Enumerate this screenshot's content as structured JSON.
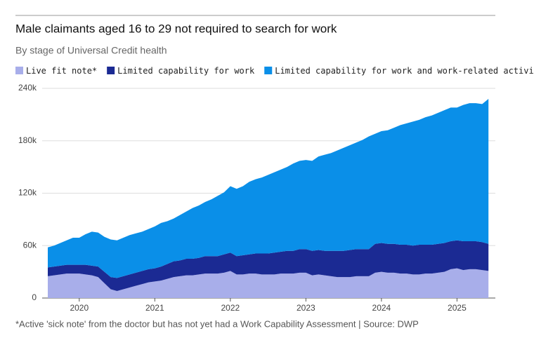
{
  "chart_data": {
    "type": "stacked_area",
    "title": "Male claimants aged 16 to 29 not required to search for work",
    "subtitle": "By stage of Universal Credit health",
    "footnote": "*Active 'sick note' from the doctor but has not yet had a Work Capability Assessment | Source: DWP",
    "categories": [
      null,
      null,
      null,
      null,
      null,
      "2020",
      null,
      null,
      null,
      null,
      null,
      null,
      null,
      null,
      null,
      null,
      null,
      "2021",
      null,
      null,
      null,
      null,
      null,
      null,
      null,
      null,
      null,
      null,
      null,
      "2022",
      null,
      null,
      null,
      null,
      null,
      null,
      null,
      null,
      null,
      null,
      null,
      "2023",
      null,
      null,
      null,
      null,
      null,
      null,
      null,
      null,
      null,
      null,
      null,
      "2024",
      null,
      null,
      null,
      null,
      null,
      null,
      null,
      null,
      null,
      null,
      null,
      "2025",
      null,
      null,
      null,
      null,
      null
    ],
    "series": [
      {
        "name": "Live fit note*",
        "color": "#a8aeea",
        "values": [
          25000,
          26000,
          27000,
          28000,
          28000,
          28000,
          27000,
          26000,
          24000,
          17000,
          10000,
          8000,
          10000,
          12000,
          14000,
          16000,
          18000,
          19000,
          20000,
          22000,
          24000,
          25000,
          26000,
          26000,
          27000,
          28000,
          28000,
          28000,
          29000,
          31000,
          27000,
          27000,
          28000,
          28000,
          27000,
          27000,
          27000,
          28000,
          28000,
          28000,
          29000,
          29000,
          26000,
          27000,
          26000,
          25000,
          24000,
          24000,
          24000,
          25000,
          25000,
          25000,
          29000,
          30000,
          29000,
          29000,
          28000,
          28000,
          27000,
          27000,
          28000,
          28000,
          29000,
          30000,
          33000,
          34000,
          32000,
          33000,
          33000,
          32000,
          31000
        ]
      },
      {
        "name": "Limited capability for work",
        "color": "#1b2a93",
        "values": [
          10000,
          10000,
          10000,
          10000,
          10000,
          10000,
          11000,
          11000,
          12000,
          13000,
          14000,
          15000,
          15000,
          15000,
          15000,
          15000,
          15000,
          15000,
          16000,
          17000,
          18000,
          18000,
          19000,
          19000,
          19000,
          20000,
          20000,
          20000,
          21000,
          21000,
          21000,
          22000,
          22000,
          23000,
          24000,
          24000,
          25000,
          25000,
          26000,
          26000,
          27000,
          27000,
          28000,
          28000,
          28000,
          29000,
          30000,
          30000,
          31000,
          31000,
          31000,
          31000,
          33000,
          33000,
          33000,
          33000,
          33000,
          33000,
          33000,
          34000,
          33000,
          33000,
          33000,
          33000,
          32000,
          32000,
          33000,
          32000,
          32000,
          32000,
          31000
        ]
      },
      {
        "name": "Limited capability for work and work-related activity",
        "color": "#0a8fe8",
        "values": [
          23000,
          24000,
          26000,
          28000,
          31000,
          31000,
          35000,
          39000,
          39000,
          40000,
          43000,
          43000,
          44000,
          45000,
          45000,
          45000,
          46000,
          48000,
          50000,
          49000,
          49000,
          52000,
          54000,
          58000,
          60000,
          62000,
          65000,
          69000,
          71000,
          76000,
          77000,
          79000,
          83000,
          85000,
          87000,
          90000,
          92000,
          94000,
          96000,
          100000,
          101000,
          102000,
          103000,
          107000,
          110000,
          112000,
          115000,
          118000,
          120000,
          122000,
          125000,
          129000,
          126000,
          128000,
          130000,
          133000,
          137000,
          139000,
          142000,
          143000,
          146000,
          148000,
          150000,
          152000,
          153000,
          152000,
          156000,
          158000,
          158000,
          158000,
          166000
        ]
      }
    ],
    "ylim": [
      0,
      240000
    ],
    "yticks": [
      0,
      {
        "value": 60000,
        "label": "60k"
      },
      {
        "value": 120000,
        "label": "120k"
      },
      {
        "value": 180000,
        "label": "180k"
      },
      {
        "value": 240000,
        "label": "240k"
      }
    ],
    "grid": true
  }
}
